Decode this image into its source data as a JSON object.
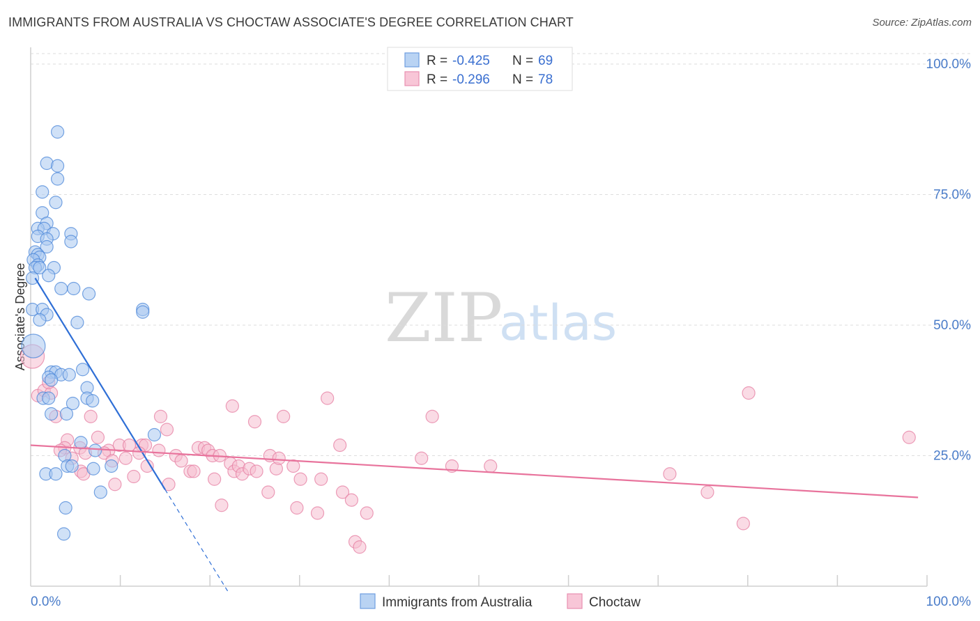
{
  "title": "IMMIGRANTS FROM AUSTRALIA VS CHOCTAW ASSOCIATE'S DEGREE CORRELATION CHART",
  "source": "Source: ZipAtlas.com",
  "watermark": {
    "zip": "ZIP",
    "atlas": "atlas"
  },
  "legend": {
    "rows": [
      {
        "r_label": "R =",
        "r_value": "-0.425",
        "n_label": "N =",
        "n_value": "69"
      },
      {
        "r_label": "R =",
        "r_value": "-0.296",
        "n_label": "N =",
        "n_value": "78"
      }
    ]
  },
  "colors": {
    "blue_fill": "#a9c8f0",
    "blue_stroke": "#4a86d8",
    "blue_line": "#2f6fd6",
    "pink_fill": "#f6bdd0",
    "pink_stroke": "#e57ea2",
    "pink_line": "#e8739c",
    "tick_text": "#4a7cc9",
    "grid": "#dddddd"
  },
  "chart_data": {
    "type": "scatter",
    "title": "IMMIGRANTS FROM AUSTRALIA VS CHOCTAW ASSOCIATE'S DEGREE CORRELATION CHART",
    "xlabel": "",
    "ylabel": "Associate's Degree",
    "xlim": [
      0,
      100
    ],
    "ylim": [
      0,
      102
    ],
    "x_tick_labels": [
      "0.0%",
      "100.0%"
    ],
    "y_ticks": [
      25,
      50,
      75,
      100
    ],
    "y_tick_labels": [
      "25.0%",
      "50.0%",
      "75.0%",
      "100.0%"
    ],
    "grid": true,
    "series": [
      {
        "name": "Immigrants from Australia",
        "r": -0.425,
        "n": 69,
        "trend": {
          "x0": 0.5,
          "y0": 59,
          "x1": 15,
          "y1": 18.5,
          "dash_x1": 22,
          "dash_y1": -1
        },
        "points": [
          {
            "x": 3.0,
            "y": 87
          },
          {
            "x": 1.8,
            "y": 81
          },
          {
            "x": 3.0,
            "y": 80.5
          },
          {
            "x": 3.0,
            "y": 78
          },
          {
            "x": 1.3,
            "y": 75.5
          },
          {
            "x": 2.8,
            "y": 73.5
          },
          {
            "x": 1.3,
            "y": 71.5
          },
          {
            "x": 1.8,
            "y": 69.5
          },
          {
            "x": 0.8,
            "y": 68.5
          },
          {
            "x": 1.5,
            "y": 68.5
          },
          {
            "x": 0.8,
            "y": 67
          },
          {
            "x": 2.5,
            "y": 67.5
          },
          {
            "x": 4.5,
            "y": 67.5
          },
          {
            "x": 1.8,
            "y": 66.5
          },
          {
            "x": 4.5,
            "y": 66
          },
          {
            "x": 1.8,
            "y": 65
          },
          {
            "x": 0.5,
            "y": 64
          },
          {
            "x": 0.8,
            "y": 63.5
          },
          {
            "x": 1.0,
            "y": 63
          },
          {
            "x": 0.3,
            "y": 62.5
          },
          {
            "x": 0.8,
            "y": 61.5
          },
          {
            "x": 0.5,
            "y": 61
          },
          {
            "x": 1.0,
            "y": 61
          },
          {
            "x": 2.6,
            "y": 61
          },
          {
            "x": 2.0,
            "y": 59.5
          },
          {
            "x": 0.2,
            "y": 59
          },
          {
            "x": 3.4,
            "y": 57
          },
          {
            "x": 4.8,
            "y": 57
          },
          {
            "x": 6.5,
            "y": 56
          },
          {
            "x": 0.2,
            "y": 53
          },
          {
            "x": 1.3,
            "y": 53
          },
          {
            "x": 1.8,
            "y": 52
          },
          {
            "x": 1.0,
            "y": 51
          },
          {
            "x": 12.5,
            "y": 53
          },
          {
            "x": 12.5,
            "y": 52.5
          },
          {
            "x": 5.2,
            "y": 50.5
          },
          {
            "x": 0.3,
            "y": 46
          },
          {
            "x": 5.8,
            "y": 41.5
          },
          {
            "x": 2.3,
            "y": 41
          },
          {
            "x": 2.8,
            "y": 41
          },
          {
            "x": 3.4,
            "y": 40.5
          },
          {
            "x": 4.3,
            "y": 40.5
          },
          {
            "x": 2.0,
            "y": 40
          },
          {
            "x": 2.3,
            "y": 39.5
          },
          {
            "x": 6.3,
            "y": 38
          },
          {
            "x": 1.4,
            "y": 36
          },
          {
            "x": 2.0,
            "y": 36
          },
          {
            "x": 6.3,
            "y": 36
          },
          {
            "x": 6.9,
            "y": 35.5
          },
          {
            "x": 4.7,
            "y": 35
          },
          {
            "x": 2.3,
            "y": 33
          },
          {
            "x": 4.0,
            "y": 33
          },
          {
            "x": 13.8,
            "y": 29
          },
          {
            "x": 5.6,
            "y": 27.5
          },
          {
            "x": 7.2,
            "y": 26
          },
          {
            "x": 3.8,
            "y": 25
          },
          {
            "x": 4.1,
            "y": 23
          },
          {
            "x": 4.6,
            "y": 23
          },
          {
            "x": 9.0,
            "y": 23
          },
          {
            "x": 7.0,
            "y": 22.5
          },
          {
            "x": 1.7,
            "y": 21.5
          },
          {
            "x": 2.8,
            "y": 21.5
          },
          {
            "x": 7.8,
            "y": 18
          },
          {
            "x": 3.9,
            "y": 15
          },
          {
            "x": 3.7,
            "y": 10
          }
        ]
      },
      {
        "name": "Choctaw",
        "r": -0.296,
        "n": 78,
        "trend": {
          "x0": 0,
          "y0": 27,
          "x1": 99,
          "y1": 17
        },
        "points": [
          {
            "x": 0.2,
            "y": 44
          },
          {
            "x": 0.8,
            "y": 36.5
          },
          {
            "x": 1.5,
            "y": 37.5
          },
          {
            "x": 2.3,
            "y": 37
          },
          {
            "x": 2.0,
            "y": 39
          },
          {
            "x": 2.8,
            "y": 32.5
          },
          {
            "x": 6.7,
            "y": 32.5
          },
          {
            "x": 14.5,
            "y": 32.5
          },
          {
            "x": 15.2,
            "y": 30
          },
          {
            "x": 7.5,
            "y": 28.5
          },
          {
            "x": 4.1,
            "y": 28
          },
          {
            "x": 3.8,
            "y": 26.5
          },
          {
            "x": 3.3,
            "y": 26
          },
          {
            "x": 5.5,
            "y": 26.5
          },
          {
            "x": 8.7,
            "y": 26
          },
          {
            "x": 9.9,
            "y": 27
          },
          {
            "x": 11.0,
            "y": 27
          },
          {
            "x": 12.4,
            "y": 27
          },
          {
            "x": 12.8,
            "y": 27
          },
          {
            "x": 14.3,
            "y": 26
          },
          {
            "x": 4.6,
            "y": 24.5
          },
          {
            "x": 6.1,
            "y": 25.5
          },
          {
            "x": 8.2,
            "y": 25.5
          },
          {
            "x": 9.1,
            "y": 24
          },
          {
            "x": 10.6,
            "y": 24.5
          },
          {
            "x": 12.1,
            "y": 25.5
          },
          {
            "x": 13.0,
            "y": 23
          },
          {
            "x": 16.2,
            "y": 25
          },
          {
            "x": 16.8,
            "y": 24
          },
          {
            "x": 17.8,
            "y": 22
          },
          {
            "x": 18.2,
            "y": 22
          },
          {
            "x": 18.7,
            "y": 26.5
          },
          {
            "x": 19.4,
            "y": 26.5
          },
          {
            "x": 19.8,
            "y": 26
          },
          {
            "x": 20.3,
            "y": 25
          },
          {
            "x": 21.1,
            "y": 25
          },
          {
            "x": 22.3,
            "y": 23.5
          },
          {
            "x": 22.7,
            "y": 22
          },
          {
            "x": 23.2,
            "y": 23
          },
          {
            "x": 23.6,
            "y": 21.5
          },
          {
            "x": 24.4,
            "y": 22.5
          },
          {
            "x": 25.2,
            "y": 22
          },
          {
            "x": 26.7,
            "y": 25
          },
          {
            "x": 27.4,
            "y": 22.5
          },
          {
            "x": 27.7,
            "y": 24.5
          },
          {
            "x": 29.3,
            "y": 23
          },
          {
            "x": 5.6,
            "y": 22
          },
          {
            "x": 5.9,
            "y": 21.5
          },
          {
            "x": 9.4,
            "y": 19.5
          },
          {
            "x": 11.5,
            "y": 21
          },
          {
            "x": 15.4,
            "y": 19.5
          },
          {
            "x": 20.5,
            "y": 20.5
          },
          {
            "x": 30.1,
            "y": 20.5
          },
          {
            "x": 32.4,
            "y": 20.5
          },
          {
            "x": 22.5,
            "y": 34.5
          },
          {
            "x": 25.0,
            "y": 31.5
          },
          {
            "x": 28.2,
            "y": 32.5
          },
          {
            "x": 33.1,
            "y": 36
          },
          {
            "x": 34.5,
            "y": 27
          },
          {
            "x": 43.6,
            "y": 24.5
          },
          {
            "x": 44.8,
            "y": 32.5
          },
          {
            "x": 47.0,
            "y": 23
          },
          {
            "x": 51.3,
            "y": 23
          },
          {
            "x": 71.3,
            "y": 21.5
          },
          {
            "x": 75.5,
            "y": 18
          },
          {
            "x": 80.1,
            "y": 37
          },
          {
            "x": 98.0,
            "y": 28.5
          },
          {
            "x": 79.5,
            "y": 12
          },
          {
            "x": 26.5,
            "y": 18
          },
          {
            "x": 29.7,
            "y": 15
          },
          {
            "x": 34.8,
            "y": 18
          },
          {
            "x": 35.8,
            "y": 16.5
          },
          {
            "x": 21.3,
            "y": 15.5
          },
          {
            "x": 32.0,
            "y": 14
          },
          {
            "x": 37.5,
            "y": 14
          },
          {
            "x": 36.2,
            "y": 8.5
          },
          {
            "x": 36.7,
            "y": 7.5
          }
        ]
      }
    ]
  }
}
